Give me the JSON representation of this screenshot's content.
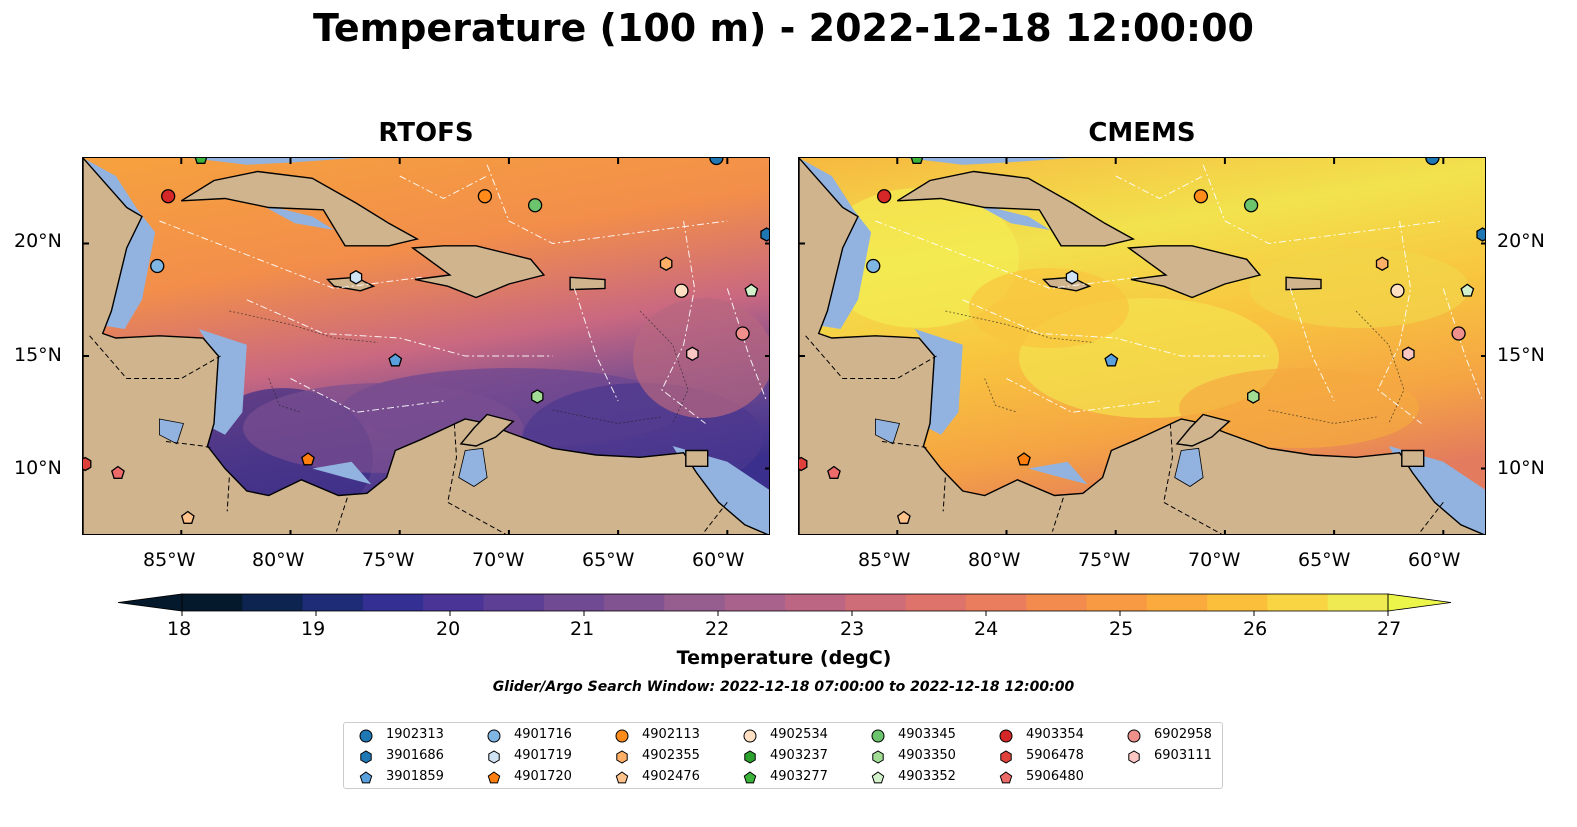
{
  "title": "Temperature (100 m) - 2022-12-18 12:00:00",
  "panels": [
    {
      "title": "RTOFS"
    },
    {
      "title": "CMEMS"
    }
  ],
  "map_extent": {
    "lon_min": -89.5,
    "lon_max": -58.0,
    "lat_min": 7.0,
    "lat_max": 23.8
  },
  "lon_ticks": [
    "85°W",
    "80°W",
    "75°W",
    "70°W",
    "65°W",
    "60°W"
  ],
  "lat_ticks": [
    "20°N",
    "15°N",
    "10°N"
  ],
  "colorbar": {
    "label": "Temperature (degC)",
    "min": 18,
    "max": 27,
    "ticks": [
      "18",
      "19",
      "20",
      "21",
      "22",
      "23",
      "24",
      "25",
      "26",
      "27"
    ],
    "colors": [
      "#04192c",
      "#0d2350",
      "#1e2c77",
      "#342f92",
      "#4a3596",
      "#5d3f95",
      "#704a93",
      "#825391",
      "#955e8f",
      "#a8628b",
      "#bc6683",
      "#ce6c78",
      "#de736b",
      "#e97d5d",
      "#f38b4e",
      "#f89a43",
      "#fbaa3d",
      "#fcbf3b",
      "#f9d544",
      "#f0ea52"
    ],
    "under_color": "#04192c",
    "over_color": "#ecf64a"
  },
  "search_window": "Glider/Argo Search Window: 2022-12-18 07:00:00 to 2022-12-18 12:00:00",
  "platforms": [
    {
      "id": "1902313",
      "marker": "circle",
      "color": "#1f77b4"
    },
    {
      "id": "3901686",
      "marker": "hexagon",
      "color": "#1f77b4"
    },
    {
      "id": "3901859",
      "marker": "pentagon",
      "color": "#5aa0dc"
    },
    {
      "id": "4901716",
      "marker": "circle",
      "color": "#7fb6e4"
    },
    {
      "id": "4901719",
      "marker": "hexagon",
      "color": "#cfe3f5"
    },
    {
      "id": "4901720",
      "marker": "pentagon",
      "color": "#ff7f0e"
    },
    {
      "id": "4902113",
      "marker": "circle",
      "color": "#ff8c1a"
    },
    {
      "id": "4902355",
      "marker": "hexagon",
      "color": "#ffb066"
    },
    {
      "id": "4902476",
      "marker": "pentagon",
      "color": "#ffc28a"
    },
    {
      "id": "4902534",
      "marker": "circle",
      "color": "#ffe0c2"
    },
    {
      "id": "4903237",
      "marker": "hexagon",
      "color": "#2ca02c"
    },
    {
      "id": "4903277",
      "marker": "pentagon",
      "color": "#3cb43c"
    },
    {
      "id": "4903345",
      "marker": "circle",
      "color": "#6cc46c"
    },
    {
      "id": "4903350",
      "marker": "hexagon",
      "color": "#a1dd95"
    },
    {
      "id": "4903352",
      "marker": "pentagon",
      "color": "#d3f2cc"
    },
    {
      "id": "4903354",
      "marker": "circle",
      "color": "#d62728"
    },
    {
      "id": "5906478",
      "marker": "hexagon",
      "color": "#e0403c"
    },
    {
      "id": "5906480",
      "marker": "pentagon",
      "color": "#ec6a68"
    },
    {
      "id": "6902958",
      "marker": "circle",
      "color": "#f0908c"
    },
    {
      "id": "6903111",
      "marker": "hexagon",
      "color": "#fcc6c2"
    }
  ],
  "observations": [
    {
      "id": "4903354",
      "lon": -85.6,
      "lat": 22.1
    },
    {
      "id": "4901716",
      "lon": -86.1,
      "lat": 19.0
    },
    {
      "id": "4903277",
      "lon": -84.1,
      "lat": 23.8
    },
    {
      "id": "4902113",
      "lon": -71.1,
      "lat": 22.1
    },
    {
      "id": "4903345",
      "lon": -68.8,
      "lat": 21.7
    },
    {
      "id": "1902313",
      "lon": -60.5,
      "lat": 23.8
    },
    {
      "id": "3901686",
      "lon": -58.2,
      "lat": 20.4
    },
    {
      "id": "4901719",
      "lon": -77.0,
      "lat": 18.5
    },
    {
      "id": "4902355",
      "lon": -62.8,
      "lat": 19.1
    },
    {
      "id": "4902534",
      "lon": -62.1,
      "lat": 17.9
    },
    {
      "id": "4903352",
      "lon": -58.9,
      "lat": 17.9
    },
    {
      "id": "6902958",
      "lon": -59.3,
      "lat": 16.0
    },
    {
      "id": "6903111",
      "lon": -61.6,
      "lat": 15.1
    },
    {
      "id": "3901859",
      "lon": -75.2,
      "lat": 14.8
    },
    {
      "id": "4903350",
      "lon": -68.7,
      "lat": 13.2
    },
    {
      "id": "4901720",
      "lon": -79.2,
      "lat": 10.4
    },
    {
      "id": "5906478",
      "lon": -89.4,
      "lat": 10.2
    },
    {
      "id": "5906480",
      "lon": -87.9,
      "lat": 9.8
    },
    {
      "id": "4902476",
      "lon": -84.7,
      "lat": 7.8
    }
  ]
}
